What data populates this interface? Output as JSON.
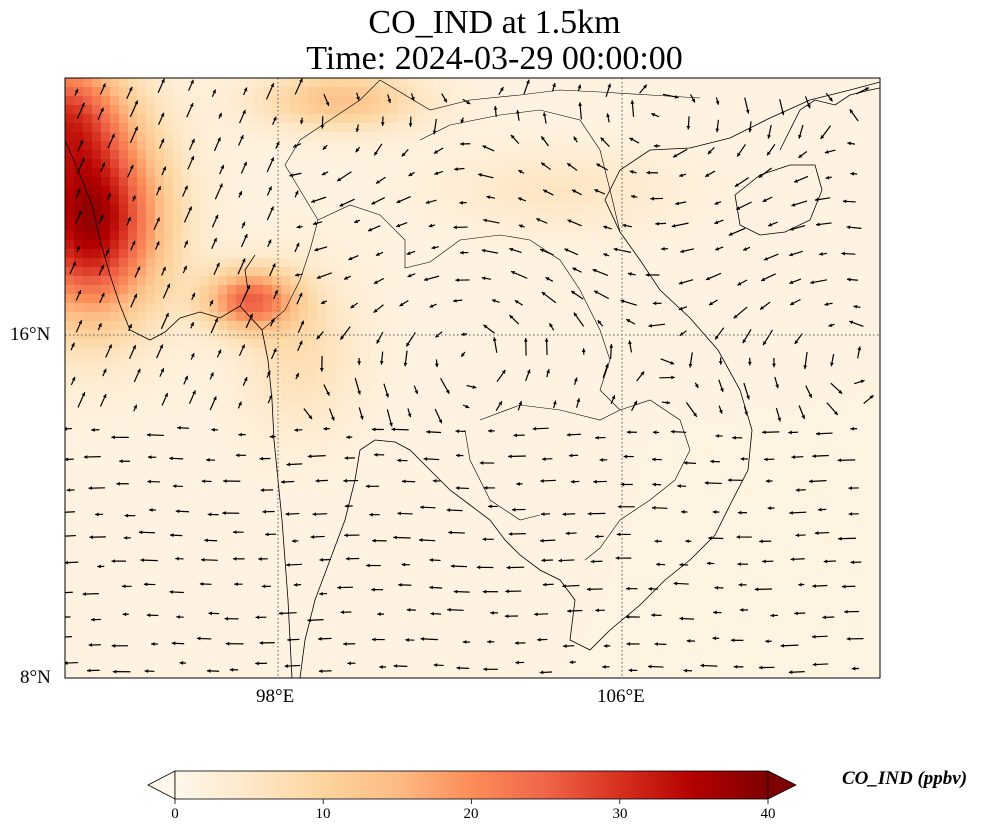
{
  "title": {
    "line1": "CO_IND at 1.5km",
    "line2": "Time: 2024-03-29 00:00:00"
  },
  "map": {
    "lon_range": [
      91.8,
      110.8
    ],
    "lat_range": [
      8,
      22
    ],
    "lon_ticks": [
      {
        "value": 98,
        "label": "98°E"
      },
      {
        "value": 106,
        "label": "106°E"
      }
    ],
    "lat_ticks": [
      {
        "value": 16,
        "label": "16°N"
      },
      {
        "value": 8,
        "label": "8°N"
      }
    ],
    "gridlines": "dotted"
  },
  "colorbar": {
    "label": "CO_IND (ppbv)",
    "colormap": "OrRd",
    "min": 0,
    "max": 40,
    "ticks": [
      "0",
      "10",
      "20",
      "30",
      "40"
    ],
    "extend": "both"
  },
  "colors": {
    "low": "#fff7ec",
    "high": "#7f0000"
  }
}
